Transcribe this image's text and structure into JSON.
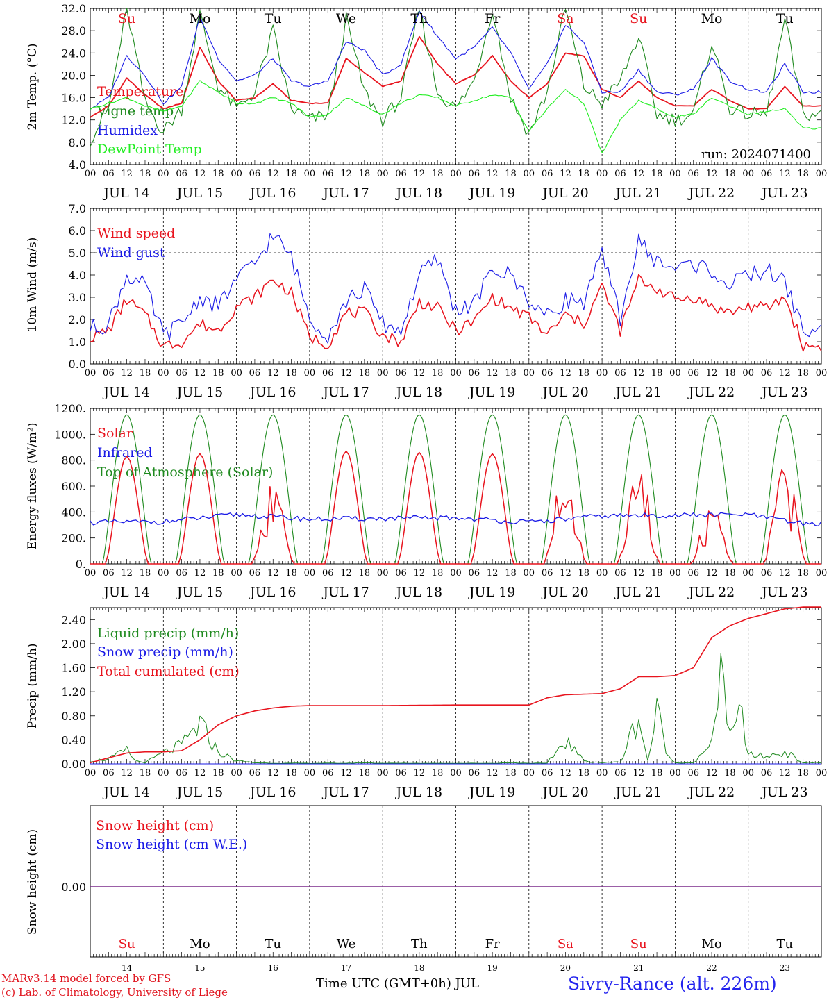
{
  "colors": {
    "red": "#e8141e",
    "darkgreen": "#1f8a1f",
    "blue": "#1a1ae6",
    "lightgreen": "#22ee22",
    "purple": "#7a2a8a",
    "axis": "#000000"
  },
  "days": [
    {
      "date": "JUL 14",
      "dow": "Su",
      "num": "14",
      "weekend": true
    },
    {
      "date": "JUL 15",
      "dow": "Mo",
      "num": "15",
      "weekend": false
    },
    {
      "date": "JUL 16",
      "dow": "Tu",
      "num": "16",
      "weekend": false
    },
    {
      "date": "JUL 17",
      "dow": "We",
      "num": "17",
      "weekend": false
    },
    {
      "date": "JUL 18",
      "dow": "Th",
      "num": "18",
      "weekend": false
    },
    {
      "date": "JUL 19",
      "dow": "Fr",
      "num": "19",
      "weekend": false
    },
    {
      "date": "JUL 20",
      "dow": "Sa",
      "num": "20",
      "weekend": true
    },
    {
      "date": "JUL 21",
      "dow": "Su",
      "num": "21",
      "weekend": true
    },
    {
      "date": "JUL 22",
      "dow": "Mo",
      "num": "22",
      "weekend": false
    },
    {
      "date": "JUL 23",
      "dow": "Tu",
      "num": "23",
      "weekend": false
    }
  ],
  "hour_labels": [
    "00",
    "06",
    "12",
    "18"
  ],
  "chart_data": [
    {
      "type": "line",
      "ylabel": "2m Temp. (°C)",
      "ylim": [
        4,
        32
      ],
      "ytick_labels": [
        "4.0",
        "8.0",
        "12.0",
        "16.0",
        "20.0",
        "24.0",
        "28.0",
        "32.0"
      ],
      "annotation": "run: 2024071400",
      "series": [
        {
          "name": "Temperature",
          "color": "#e8141e",
          "x_hours": [
            0,
            6,
            12,
            18,
            24,
            30,
            36,
            42,
            48,
            54,
            60,
            66,
            72,
            78,
            84,
            90,
            96,
            102,
            108,
            114,
            120,
            126,
            132,
            138,
            144,
            150,
            156,
            162,
            168,
            174,
            180,
            186,
            192,
            198,
            204,
            210,
            216,
            222,
            228,
            234
          ],
          "values": [
            12.5,
            14.5,
            19.5,
            16.5,
            14,
            15,
            25,
            19,
            15.5,
            16,
            18.5,
            15.5,
            15,
            15,
            23,
            20.5,
            18,
            19,
            27,
            22,
            18.5,
            20,
            23.5,
            19,
            16,
            18.5,
            24,
            23.5,
            17.5,
            16,
            19,
            16,
            14.5,
            14.5,
            17.5,
            15.5,
            14,
            14,
            18,
            14.5
          ]
        },
        {
          "name": "Vigne temp",
          "color": "#1f8a1f",
          "x_hours": [
            0,
            6,
            12,
            18,
            24,
            30,
            36,
            42,
            48,
            54,
            60,
            66,
            72,
            78,
            84,
            90,
            96,
            102,
            108,
            114,
            120,
            126,
            132,
            138,
            144,
            150,
            156,
            162,
            168,
            174,
            180,
            186,
            192,
            198,
            204,
            210,
            216,
            222,
            228,
            234
          ],
          "values": [
            8.5,
            14,
            32,
            15,
            10,
            14,
            31,
            18,
            14,
            17,
            28,
            14,
            12,
            13,
            30,
            17,
            12,
            16,
            32,
            17,
            14,
            19,
            32,
            16,
            9.5,
            17,
            32,
            18,
            15,
            19,
            27,
            13,
            12,
            13,
            26,
            14,
            13,
            13,
            30,
            13
          ]
        },
        {
          "name": "Humidex",
          "color": "#1a1ae6",
          "x_hours": [
            0,
            6,
            12,
            18,
            24,
            30,
            36,
            42,
            48,
            54,
            60,
            66,
            72,
            78,
            84,
            90,
            96,
            102,
            108,
            114,
            120,
            126,
            132,
            138,
            144,
            150,
            156,
            162,
            168,
            174,
            180,
            186,
            192,
            198,
            204,
            210,
            216,
            222,
            228,
            234
          ],
          "values": [
            14,
            16,
            23.5,
            20,
            15,
            18,
            30.5,
            23,
            19,
            20,
            23,
            19,
            18,
            19,
            26,
            24.5,
            20,
            22,
            31.5,
            27,
            23,
            25,
            28.5,
            24,
            17.5,
            22,
            29,
            26,
            17,
            17,
            21,
            17,
            16.5,
            17.5,
            23,
            19,
            17.5,
            17,
            22,
            17
          ]
        },
        {
          "name": "DewPoint Temp",
          "color": "#22ee22",
          "x_hours": [
            0,
            6,
            12,
            18,
            24,
            30,
            36,
            42,
            48,
            54,
            60,
            66,
            72,
            78,
            84,
            90,
            96,
            102,
            108,
            114,
            120,
            126,
            132,
            138,
            144,
            150,
            156,
            162,
            168,
            174,
            180,
            186,
            192,
            198,
            204,
            210,
            216,
            222,
            228,
            234
          ],
          "values": [
            14,
            15,
            16,
            14.5,
            13.5,
            14.5,
            19,
            17,
            15,
            15,
            16,
            15,
            12.5,
            13,
            16,
            14.5,
            13,
            15,
            16.5,
            16,
            14.5,
            15.5,
            16.5,
            16,
            10,
            14,
            17.5,
            15,
            6,
            12,
            15.5,
            14,
            12.5,
            13,
            16,
            14.5,
            13,
            13.5,
            14,
            10.5
          ]
        }
      ]
    },
    {
      "type": "line",
      "ylabel": "10m Wind (m/s)",
      "ylim": [
        0,
        7
      ],
      "ytick_labels": [
        "0.0",
        "1.0",
        "2.0",
        "3.0",
        "4.0",
        "5.0",
        "6.0",
        "7.0"
      ],
      "hline": 5,
      "series": [
        {
          "name": "Wind speed",
          "color": "#e8141e",
          "x_hours": [
            0,
            6,
            12,
            18,
            24,
            30,
            36,
            42,
            48,
            54,
            60,
            66,
            72,
            78,
            84,
            90,
            96,
            102,
            108,
            114,
            120,
            126,
            132,
            138,
            144,
            150,
            156,
            162,
            168,
            174,
            180,
            186,
            192,
            198,
            204,
            210,
            216,
            222,
            228,
            234
          ],
          "values": [
            1.2,
            1.5,
            2.9,
            2.2,
            0.8,
            1,
            1.8,
            1.5,
            2.6,
            3,
            3.8,
            3.2,
            1.2,
            0.9,
            2.3,
            2.3,
            1.3,
            1,
            2.8,
            2.5,
            1.5,
            1.9,
            3,
            2.5,
            2.1,
            1.3,
            2.2,
            1.8,
            3.5,
            1.5,
            3.8,
            3.4,
            2.9,
            3,
            2.6,
            2.3,
            2.6,
            2.5,
            3,
            0.8
          ]
        },
        {
          "name": "Wind gust",
          "color": "#1a1ae6",
          "x_hours": [
            0,
            6,
            12,
            18,
            24,
            30,
            36,
            42,
            48,
            54,
            60,
            66,
            72,
            78,
            84,
            90,
            96,
            102,
            108,
            114,
            120,
            126,
            132,
            138,
            144,
            150,
            156,
            162,
            168,
            174,
            180,
            186,
            192,
            198,
            204,
            210,
            216,
            222,
            228,
            234
          ],
          "values": [
            1.6,
            1.8,
            4,
            3.5,
            1.3,
            1.8,
            3,
            2.6,
            3.8,
            4.5,
            5.8,
            4.8,
            2.1,
            1.3,
            2.8,
            3.4,
            1.8,
            1.5,
            4,
            4.7,
            2.4,
            2.7,
            4.2,
            4,
            2.9,
            2.1,
            2.9,
            2.8,
            4.9,
            2.1,
            5.5,
            4.6,
            4.3,
            4.5,
            4.2,
            3.5,
            4,
            4.2,
            3.7,
            1.5
          ]
        }
      ]
    },
    {
      "type": "line",
      "ylabel": "Energy fluxes (W/m²)",
      "ylim": [
        0,
        1200
      ],
      "ytick_labels": [
        "0.",
        "200.",
        "400.",
        "600.",
        "800.",
        "1000.",
        "1200."
      ],
      "series": [
        {
          "name": "Solar",
          "color": "#e8141e",
          "daily_peaks": [
            830,
            850,
            620,
            870,
            860,
            850,
            780,
            780,
            450,
            790
          ]
        },
        {
          "name": "Infrared",
          "color": "#1a1ae6",
          "x_hours": [
            0,
            24,
            48,
            72,
            96,
            120,
            144,
            168,
            192,
            216,
            234
          ],
          "values": [
            320,
            325,
            380,
            345,
            350,
            355,
            320,
            370,
            375,
            380,
            310
          ]
        },
        {
          "name": "Top of Atmosphere (Solar)",
          "color": "#1f8a1f",
          "daily_peak": 1150
        }
      ]
    },
    {
      "type": "line",
      "ylabel": "Precip (mm/h)",
      "ylim": [
        0,
        2.6
      ],
      "ytick_labels": [
        "0.00",
        "0.40",
        "0.80",
        "1.20",
        "1.60",
        "2.00",
        "2.40"
      ],
      "series": [
        {
          "name": "Liquid precip (mm/h)",
          "color": "#1f8a1f",
          "x_hours": [
            0,
            6,
            12,
            15,
            18,
            24,
            30,
            33,
            36,
            42,
            48,
            54,
            60,
            66,
            72,
            78,
            84,
            90,
            96,
            102,
            108,
            114,
            120,
            126,
            132,
            138,
            144,
            150,
            156,
            162,
            168,
            174,
            180,
            183,
            186,
            190,
            192,
            198,
            204,
            207,
            210,
            214,
            216,
            222,
            228,
            234
          ],
          "values": [
            0.05,
            0.08,
            0.22,
            0.05,
            0.02,
            0.18,
            0.3,
            0.48,
            0.65,
            0.2,
            0.05,
            0.02,
            0.01,
            0.01,
            0.01,
            0.01,
            0.01,
            0.02,
            0.01,
            0.01,
            0.01,
            0.01,
            0.01,
            0.01,
            0.01,
            0.02,
            0.01,
            0.01,
            0.4,
            0.05,
            0.02,
            0.03,
            0.8,
            0.05,
            0.85,
            0.1,
            0.02,
            0.02,
            0.3,
            1.8,
            0.4,
            0.85,
            0.15,
            0.12,
            0.2,
            0.02
          ]
        },
        {
          "name": "Snow precip (mm/h)",
          "color": "#1a1ae6",
          "x_hours": [
            0,
            240
          ],
          "values": [
            0,
            0
          ]
        },
        {
          "name": "Total cumulated (cm)",
          "color": "#e8141e",
          "x_hours": [
            0,
            12,
            18,
            24,
            30,
            36,
            42,
            48,
            54,
            60,
            66,
            72,
            96,
            120,
            144,
            150,
            156,
            168,
            174,
            180,
            186,
            192,
            198,
            204,
            210,
            216,
            222,
            228,
            234,
            240
          ],
          "values": [
            0.02,
            0.18,
            0.2,
            0.2,
            0.22,
            0.4,
            0.65,
            0.8,
            0.88,
            0.93,
            0.96,
            0.97,
            0.97,
            0.98,
            0.98,
            1.1,
            1.15,
            1.17,
            1.25,
            1.45,
            1.45,
            1.47,
            1.6,
            2.1,
            2.3,
            2.42,
            2.5,
            2.58,
            2.61,
            2.61
          ]
        }
      ]
    },
    {
      "type": "line",
      "ylabel": "Snow height (cm)",
      "ytick_labels": [
        "0.00"
      ],
      "series": [
        {
          "name": "Snow height (cm)",
          "color": "#e8141e",
          "x_hours": [
            0,
            240
          ],
          "values": [
            0,
            0
          ]
        },
        {
          "name": "Snow height (cm W.E.)",
          "color": "#1a1ae6",
          "x_hours": [
            0,
            240
          ],
          "values": [
            0,
            0
          ]
        }
      ]
    }
  ],
  "footer": {
    "model": "MARv3.14 model forced by GFS",
    "lab": "(c) Lab. of Climatology, University of Liege",
    "time_label": "Time UTC (GMT+0h) JUL",
    "site": "Sivry-Rance (alt. 226m)"
  }
}
